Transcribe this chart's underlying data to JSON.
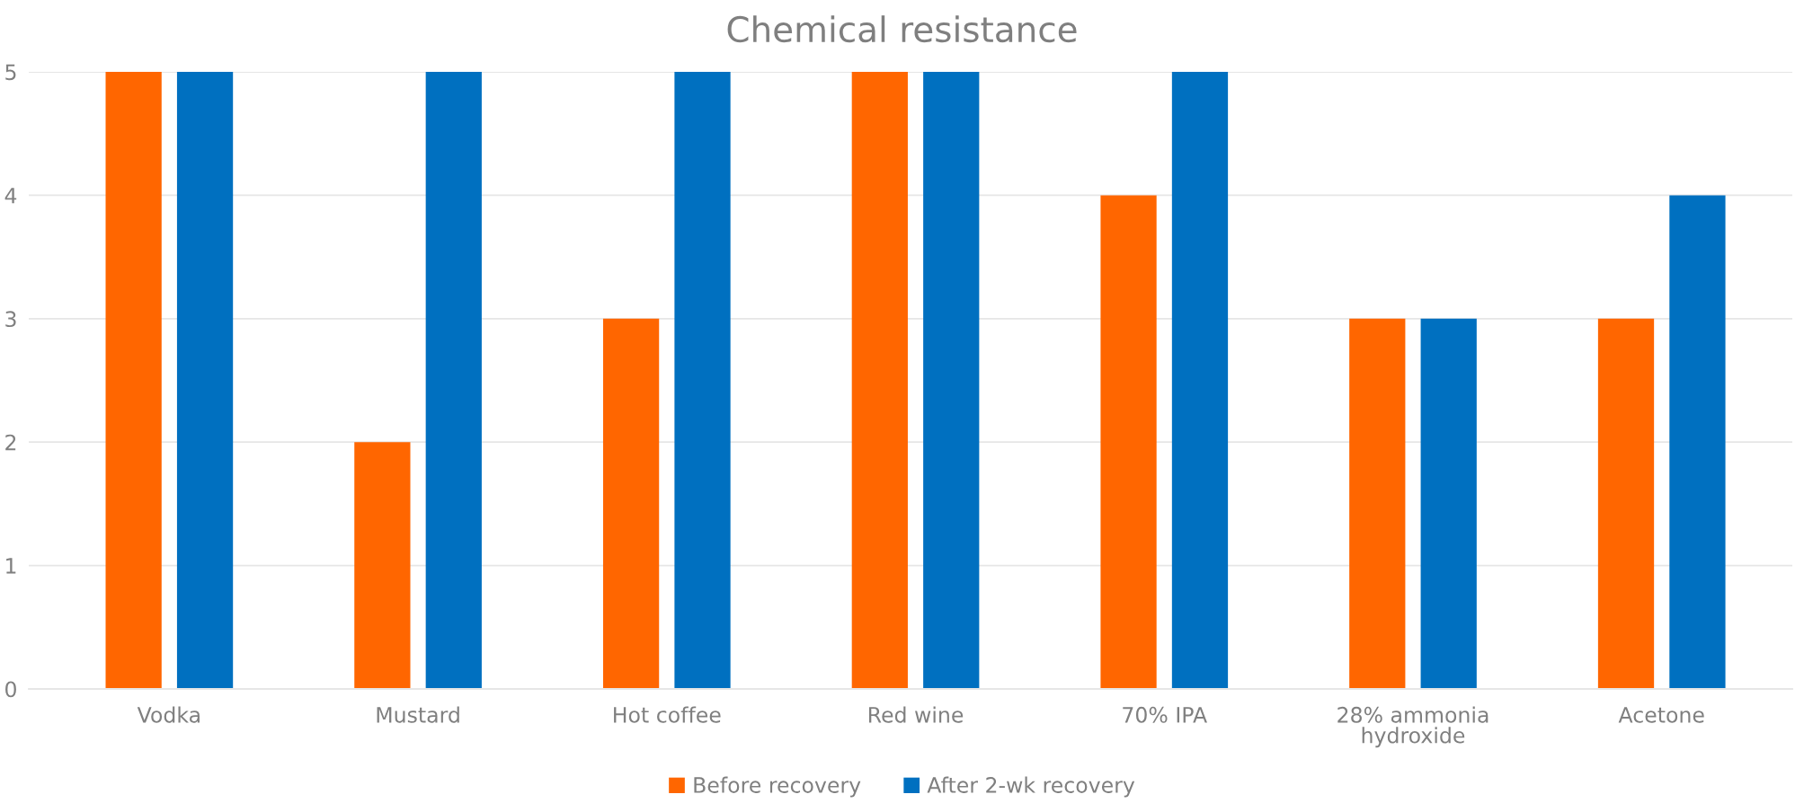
{
  "chart_data": {
    "type": "bar",
    "title": "Chemical resistance",
    "categories": [
      "Vodka",
      "Mustard",
      "Hot coffee",
      "Red wine",
      "70% IPA",
      "28% ammonia\nhydroxide",
      "Acetone"
    ],
    "series": [
      {
        "name": "Before recovery",
        "color": "#ff6600",
        "values": [
          5,
          2,
          3,
          5,
          4,
          3,
          3
        ]
      },
      {
        "name": "After 2-wk recovery",
        "color": "#0070c0",
        "values": [
          5,
          5,
          5,
          5,
          5,
          3,
          4
        ]
      }
    ],
    "ylim": [
      0,
      5
    ],
    "yticks": [
      0,
      1,
      2,
      3,
      4,
      5
    ],
    "grid": "y",
    "legend": "bottom"
  }
}
